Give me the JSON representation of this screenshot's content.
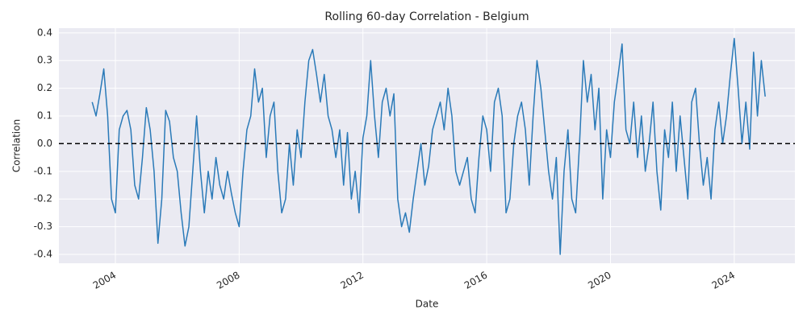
{
  "chart_data": {
    "type": "line",
    "title": "Rolling 60-day Correlation - Belgium",
    "x_label": "Date",
    "y_label": "Correlation",
    "xlim": [
      2002.175,
      2025.96
    ],
    "ylim": [
      -0.432,
      0.417
    ],
    "xticks": [
      2004,
      2008,
      2012,
      2016,
      2020,
      2024
    ],
    "yticks": [
      -0.4,
      -0.3,
      -0.2,
      -0.1,
      {
        "value": 0,
        "label": "0.0"
      },
      0.1,
      0.2,
      0.3,
      0.4
    ],
    "grid": true,
    "hline": 0,
    "hline_color": "#000000",
    "x": [
      2003.25,
      2003.375,
      2003.5,
      2003.625,
      2003.75,
      2003.875,
      2004,
      2004.125,
      2004.25,
      2004.375,
      2004.5,
      2004.625,
      2004.75,
      2004.875,
      2005,
      2005.125,
      2005.25,
      2005.375,
      2005.5,
      2005.625,
      2005.75,
      2005.875,
      2006,
      2006.125,
      2006.25,
      2006.375,
      2006.5,
      2006.625,
      2006.75,
      2006.875,
      2007,
      2007.125,
      2007.25,
      2007.375,
      2007.5,
      2007.625,
      2007.75,
      2007.875,
      2008,
      2008.125,
      2008.25,
      2008.375,
      2008.5,
      2008.625,
      2008.75,
      2008.875,
      2009,
      2009.125,
      2009.25,
      2009.375,
      2009.5,
      2009.625,
      2009.75,
      2009.875,
      2010,
      2010.125,
      2010.25,
      2010.375,
      2010.5,
      2010.625,
      2010.75,
      2010.875,
      2011,
      2011.125,
      2011.25,
      2011.375,
      2011.5,
      2011.625,
      2011.75,
      2011.875,
      2012,
      2012.125,
      2012.25,
      2012.375,
      2012.5,
      2012.625,
      2012.75,
      2012.875,
      2013,
      2013.125,
      2013.25,
      2013.375,
      2013.5,
      2013.625,
      2013.75,
      2013.875,
      2014,
      2014.125,
      2014.25,
      2014.375,
      2014.5,
      2014.625,
      2014.75,
      2014.875,
      2015,
      2015.125,
      2015.25,
      2015.375,
      2015.5,
      2015.625,
      2015.75,
      2015.875,
      2016,
      2016.125,
      2016.25,
      2016.375,
      2016.5,
      2016.625,
      2016.75,
      2016.875,
      2017,
      2017.125,
      2017.25,
      2017.375,
      2017.5,
      2017.625,
      2017.75,
      2017.875,
      2018,
      2018.125,
      2018.25,
      2018.375,
      2018.5,
      2018.625,
      2018.75,
      2018.875,
      2019,
      2019.125,
      2019.25,
      2019.375,
      2019.5,
      2019.625,
      2019.75,
      2019.875,
      2020,
      2020.125,
      2020.25,
      2020.375,
      2020.5,
      2020.625,
      2020.75,
      2020.875,
      2021,
      2021.125,
      2021.25,
      2021.375,
      2021.5,
      2021.625,
      2021.75,
      2021.875,
      2022,
      2022.125,
      2022.25,
      2022.375,
      2022.5,
      2022.625,
      2022.75,
      2022.875,
      2023,
      2023.125,
      2023.25,
      2023.375,
      2023.5,
      2023.625,
      2023.75,
      2023.875,
      2024,
      2024.125,
      2024.25,
      2024.375,
      2024.5,
      2024.625,
      2024.75,
      2024.875,
      2025
    ],
    "series": [
      {
        "name": "Belgium",
        "color": "#2a7ab8",
        "values": [
          0.15,
          0.1,
          0.18,
          0.27,
          0.1,
          -0.2,
          -0.25,
          0.05,
          0.1,
          0.12,
          0.05,
          -0.15,
          -0.2,
          -0.05,
          0.13,
          0.05,
          -0.1,
          -0.36,
          -0.2,
          0.12,
          0.08,
          -0.05,
          -0.1,
          -0.25,
          -0.37,
          -0.3,
          -0.1,
          0.1,
          -0.1,
          -0.25,
          -0.1,
          -0.2,
          -0.05,
          -0.15,
          -0.2,
          -0.1,
          -0.18,
          -0.25,
          -0.3,
          -0.1,
          0.05,
          0.1,
          0.27,
          0.15,
          0.2,
          -0.05,
          0.1,
          0.15,
          -0.1,
          -0.25,
          -0.2,
          0.0,
          -0.15,
          0.05,
          -0.05,
          0.15,
          0.3,
          0.34,
          0.25,
          0.15,
          0.25,
          0.1,
          0.05,
          -0.05,
          0.05,
          -0.15,
          0.04,
          -0.2,
          -0.1,
          -0.25,
          0.02,
          0.1,
          0.3,
          0.1,
          -0.05,
          0.15,
          0.2,
          0.1,
          0.18,
          -0.2,
          -0.3,
          -0.25,
          -0.32,
          -0.2,
          -0.1,
          0.0,
          -0.15,
          -0.08,
          0.05,
          0.1,
          0.15,
          0.05,
          0.2,
          0.1,
          -0.1,
          -0.15,
          -0.1,
          -0.05,
          -0.2,
          -0.25,
          -0.05,
          0.1,
          0.05,
          -0.1,
          0.15,
          0.2,
          0.1,
          -0.25,
          -0.2,
          0.0,
          0.1,
          0.15,
          0.05,
          -0.15,
          0.1,
          0.3,
          0.2,
          0.05,
          -0.1,
          -0.2,
          -0.05,
          -0.4,
          -0.1,
          0.05,
          -0.2,
          -0.25,
          0.0,
          0.3,
          0.15,
          0.25,
          0.05,
          0.2,
          -0.2,
          0.05,
          -0.05,
          0.15,
          0.25,
          0.36,
          0.05,
          0.0,
          0.15,
          -0.05,
          0.1,
          -0.1,
          0.0,
          0.15,
          -0.1,
          -0.24,
          0.05,
          -0.05,
          0.15,
          -0.1,
          0.1,
          -0.05,
          -0.2,
          0.15,
          0.2,
          0.0,
          -0.15,
          -0.05,
          -0.2,
          0.05,
          0.15,
          0.0,
          0.1,
          0.25,
          0.38,
          0.2,
          0.0,
          0.15,
          -0.02,
          0.33,
          0.1,
          0.3,
          0.17
        ]
      }
    ]
  }
}
